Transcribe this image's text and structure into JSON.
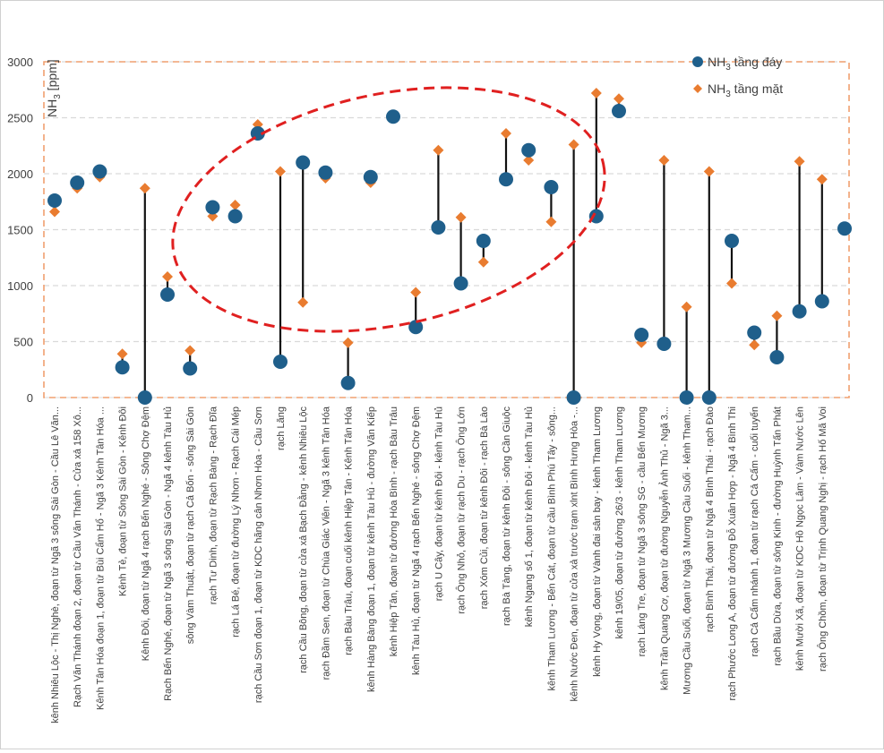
{
  "chart_data": {
    "type": "scatter",
    "style": "dumbbell",
    "ylabel_main": "NH",
    "ylabel_sub": "3",
    "ylabel_unit": " [ppm]",
    "ylim": [
      0,
      3000
    ],
    "yticks": [
      0,
      500,
      1000,
      1500,
      2000,
      2500,
      3000
    ],
    "grid": true,
    "legend_position": "top-right",
    "series": [
      {
        "name_main": "NH",
        "name_sub": "3",
        "name_rest": " tầng đáy",
        "color": "#1f5f8b",
        "marker": "circle"
      },
      {
        "name_main": "NH",
        "name_sub": "3",
        "name_rest": " tầng mặt",
        "color": "#e97c30",
        "marker": "diamond"
      }
    ],
    "connector_color": "#111111",
    "dashed_box_color": "#f0a070",
    "ellipse_color": "#e02020",
    "categories": [
      "kênh Nhiêu Lộc - Thị Nghè, đoạn từ Ngã 3 sông Sài Gòn - Cầu Lê Văn...",
      "Rạch Văn Thánh đoạn 2, đoạn từ Cầu Văn Thánh - Cửa xả 158 Xô...",
      "Kênh Tân Hóa đoạn 1, đoạn từ Bùi Cẩm Hổ - Ngã 3 Kênh Tân Hóa ...",
      "Kênh Tẻ, đoạn từ Sông Sài Gòn - Kênh Đôi",
      "Kênh Đôi, đoạn từ Ngã 4 rạch Bến Nghé - Sông Chợ Đệm",
      "Rạch Bến Nghé, đoạn từ Ngã 3 sông Sài Gòn - Ngã 4 kênh Tàu Hủ",
      "sông Vàm Thuật, đoạn từ rạch Cả Bốn - sông Sài Gòn",
      "rạch Tư Dinh, đoạn từ Rạch Bàng - Rạch Đĩa",
      "rạch Lá Bé, đoạn từ đường Lý Nhơn - Rạch Cái Mép",
      "rạch Cầu Sơn đoạn 1, đoạn từ KDC hãng cân Nhơn Hòa - Cầu Sơn",
      "rạch Lăng",
      "rạch Cầu Bông, đoạn từ cửa xả Bạch Đằng - kênh Nhiêu Lộc",
      "rạch Đầm Sen, đoạn từ Chùa Giác Viên - Ngã 3 kênh Tân Hóa",
      "rạch Bàu Trâu, đoạn cuối kênh Hiệp Tân - Kênh Tân Hóa",
      "kênh Hàng Bàng đoạn 1, đoạn từ kênh Tàu Hủ - đường Văn Kiếp",
      "kênh Hiệp Tân, đoạn từ đường Hòa Bình - rạch Bàu Trâu",
      "kênh Tàu Hủ, đoạn từ Ngã 4 rạch Bến Nghé - sông Chợ Đệm",
      "rạch U Cây, đoạn từ kênh Đôi - kênh Tàu Hủ",
      "rạch Ông Nhỏ, đoạn từ rạch Du - rạch Ông Lớn",
      "rạch Xóm Củi, đoạn từ kênh Đôi - rạch Bà Lào",
      "rạch Bà Tàng, đoạn từ kênh Đôi - sông Cần Giuộc",
      "kênh Ngang số 1, đoạn từ kênh Đôi - kênh Tàu Hủ",
      "kênh Tham Lương - Bến Cát, đoạn từ cầu Bình Phú Tây - sông...",
      "kênh Nước Đen, đoạn từ cửa xả trước trạm xlnt Bình Hưng Hòa -...",
      "kênh Hy Vọng, đoạn từ Vành đai sân bay - kênh Tham Lương",
      "kênh 19/05, đoạn từ đường 26/3 - kênh Tham Lương",
      "rạch Láng Tre, đoạn từ Ngã 3 sông SG - cầu Bến Mương",
      "kênh Trần Quang Cơ, đoạn từ đường Nguyễn Ảnh Thủ - Ngã 3...",
      "Mương Cầu Suối, đoạn từ Ngã 3 Mương Cầu Suối - kênh Tham...",
      "rạch Bình Thái, đoạn từ Ngã 4 Bình Thái - rạch Đào",
      "rạch Phước Long A, đoạn từ đường Đỗ Xuân Hợp - Ngã 4 Bình Thi",
      "rạch Cả Cấm nhánh 1, đoạn từ rạch Cả Cấm - cuối tuyến",
      "rạch Bầu Dừa, đoạn từ sông Kinh - đường Huỳnh Tấn Phát",
      "kênh Mười Xã, đoạn từ KDC Hồ Ngọc Lâm - Vàm Nước Lên",
      "rạch Ông Chồm, đoạn từ Trịnh Quang Nghị - rạch Hố Mã Voi",
      ""
    ],
    "values_day": [
      1760,
      1920,
      2020,
      270,
      0,
      920,
      260,
      1700,
      1620,
      2360,
      320,
      2100,
      2010,
      130,
      1970,
      2510,
      630,
      1520,
      1020,
      1400,
      1950,
      2210,
      1880,
      0,
      1620,
      2560,
      560,
      480,
      0,
      0,
      1400,
      580,
      360,
      770,
      860,
      1510
    ],
    "values_surface": [
      1660,
      1870,
      1970,
      390,
      1870,
      1080,
      420,
      1620,
      1720,
      2440,
      2020,
      850,
      1960,
      490,
      1920,
      2510,
      940,
      2210,
      1610,
      1210,
      2360,
      2120,
      1570,
      2260,
      2720,
      2670,
      490,
      2120,
      810,
      2020,
      1020,
      470,
      730,
      2110,
      1950,
      null
    ]
  }
}
